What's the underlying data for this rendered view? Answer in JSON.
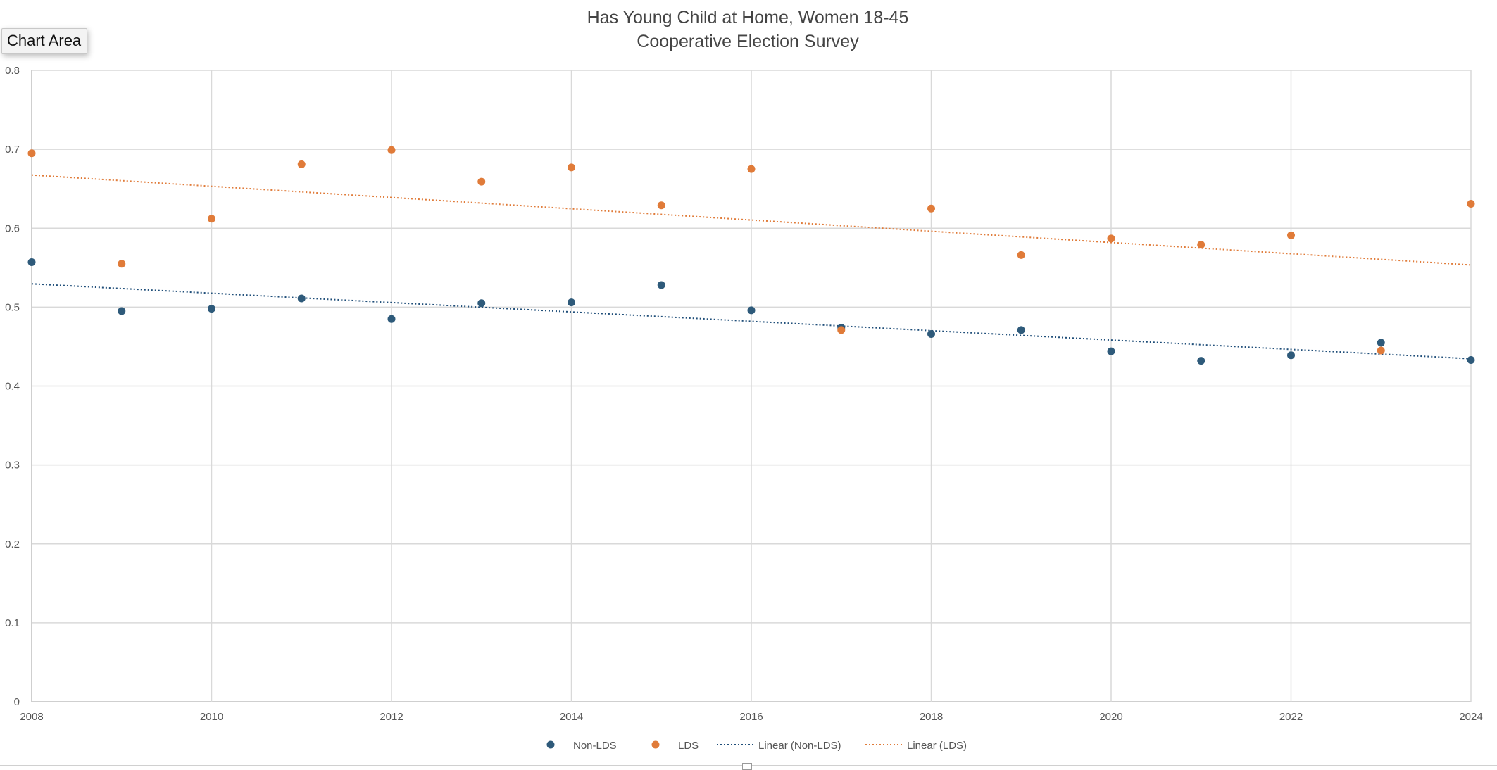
{
  "ui": {
    "chart_area_label": "Chart Area"
  },
  "chart_data": {
    "type": "scatter",
    "title": "Has Young Child at Home, Women 18-45",
    "subtitle": "Cooperative Election Survey",
    "xlabel": "",
    "ylabel": "",
    "xlim": [
      2008,
      2024
    ],
    "ylim": [
      0,
      0.8
    ],
    "x_ticks": [
      "2008",
      "2010",
      "2012",
      "2014",
      "2016",
      "2018",
      "2020",
      "2022",
      "2024"
    ],
    "y_ticks": [
      "0",
      "0.1",
      "0.2",
      "0.3",
      "0.4",
      "0.5",
      "0.6",
      "0.7",
      "0.8"
    ],
    "grid": true,
    "legend_position": "bottom",
    "x": [
      2008,
      2009,
      2010,
      2011,
      2012,
      2013,
      2014,
      2015,
      2016,
      2017,
      2018,
      2019,
      2020,
      2021,
      2022,
      2023,
      2024
    ],
    "series": [
      {
        "name": "Non-LDS",
        "color": "#2e5a7a",
        "marker": "circle",
        "values": [
          0.557,
          0.495,
          0.498,
          0.511,
          0.485,
          0.505,
          0.506,
          0.528,
          0.496,
          0.474,
          0.466,
          0.471,
          0.444,
          0.432,
          0.439,
          0.455,
          0.433
        ]
      },
      {
        "name": "LDS",
        "color": "#e07b39",
        "marker": "circle",
        "values": [
          0.695,
          0.555,
          0.612,
          0.681,
          0.699,
          0.659,
          0.677,
          0.629,
          0.675,
          0.471,
          0.625,
          0.566,
          0.587,
          0.579,
          0.591,
          0.445,
          0.631
        ]
      }
    ],
    "trendlines": [
      {
        "name": "Linear (Non-LDS)",
        "of": "Non-LDS",
        "type": "linear",
        "color": "#1f4e79",
        "style": "dotted"
      },
      {
        "name": "Linear (LDS)",
        "of": "LDS",
        "type": "linear",
        "color": "#e07b39",
        "style": "dotted"
      }
    ]
  }
}
